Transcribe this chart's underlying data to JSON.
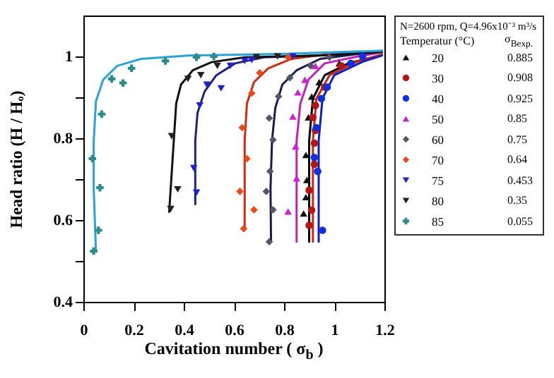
{
  "chart_data": {
    "type": "scatter",
    "xlabel": "Cavitation number ( σ$_{b}$ )",
    "ylabel": "Head ratio (H / Hₒ)",
    "legend_title": "N=2600 rpm, Q=4.96x10⁻³ m³/s",
    "legend": "right",
    "xlim": [
      0,
      1.2
    ],
    "ylim": [
      0.4,
      1.1
    ],
    "xticks": [
      0,
      0.2,
      0.4,
      0.6,
      0.8,
      1,
      1.2
    ],
    "yticks": [
      0.4,
      {
        "value": 0.5,
        "label": null
      },
      0.6,
      {
        "value": 0.7,
        "label": null
      },
      0.8,
      {
        "value": 0.9,
        "label": null
      },
      1
    ],
    "annotations": [
      "Temperatur (°C)",
      "σ$_{Bexp.}$",
      "0.885",
      "0.908",
      "0.925",
      "0.85",
      "0.75",
      "0.64",
      "0.453",
      "0.35",
      "0.055"
    ],
    "series": [
      {
        "name": "20",
        "type": "scatter",
        "marker": "triangle",
        "color": "#111111",
        "x": [
          0.878,
          0.887,
          0.891,
          0.887,
          0.897,
          0.91,
          0.94,
          1.02
        ],
        "values": [
          0.616,
          0.656,
          0.698,
          0.759,
          0.851,
          0.902,
          0.937,
          0.983
        ]
      },
      {
        "name": "30",
        "marker": "circle",
        "color": "#b01818",
        "x": [
          0.9,
          0.91,
          0.9,
          0.921,
          0.921,
          0.925,
          0.915,
          0.925,
          0.962,
          1.028
        ],
        "values": [
          0.587,
          0.624,
          0.673,
          0.736,
          0.788,
          0.819,
          0.851,
          0.88,
          0.925,
          0.977
        ]
      },
      {
        "name": "40",
        "marker": "circle",
        "color": "#1030e0",
        "x": [
          0.953,
          0.934,
          0.921,
          0.929,
          0.949,
          0.972,
          1.066,
          1.113
        ],
        "values": [
          0.575,
          0.719,
          0.753,
          0.826,
          0.897,
          0.925,
          0.983,
          1.0
        ]
      },
      {
        "name": "50",
        "marker": "triangle",
        "color": "#cc22cc",
        "x": [
          0.816,
          0.85,
          0.846,
          0.835,
          0.855,
          0.883,
          0.925
        ],
        "values": [
          0.621,
          0.702,
          0.78,
          0.853,
          0.912,
          0.943,
          0.977
        ]
      },
      {
        "name": "60",
        "marker": "diamond",
        "color": "#555566",
        "x": [
          0.741,
          0.756,
          0.729,
          0.744,
          0.756,
          0.741,
          0.778,
          0.823,
          0.906,
          0.981
        ],
        "values": [
          0.547,
          0.625,
          0.67,
          0.719,
          0.796,
          0.849,
          0.902,
          0.948,
          0.977,
          0.998
        ]
      },
      {
        "name": "70",
        "marker": "diamond",
        "color": "#e84a1a",
        "x": [
          0.639,
          0.68,
          0.624,
          0.652,
          0.633,
          0.671,
          0.703,
          0.816
        ],
        "values": [
          0.579,
          0.625,
          0.67,
          0.75,
          0.826,
          0.91,
          0.96,
          0.998
        ]
      },
      {
        "name": "75",
        "marker": "triangle-down",
        "color": "#2020d0",
        "x": [
          0.44,
          0.451,
          0.464,
          0.492,
          0.549,
          0.586,
          0.643,
          0.671,
          0.835
        ],
        "values": [
          0.727,
          0.667,
          0.88,
          0.931,
          0.922,
          0.977,
          0.989,
          0.991,
          1.0
        ]
      },
      {
        "name": "80",
        "marker": "triangle-down",
        "color": "#222222",
        "x": [
          0.352,
          0.376,
          0.348,
          0.417,
          0.468,
          0.534,
          0.69,
          0.774
        ],
        "values": [
          0.805,
          0.675,
          0.627,
          0.945,
          0.954,
          0.977,
          0.998,
          1.0
        ]
      },
      {
        "name": "85",
        "marker": "cross",
        "color": "#2e8b8b",
        "x": [
          0.041,
          0.06,
          0.066,
          0.036,
          0.073,
          0.113,
          0.158,
          0.192,
          0.327,
          0.451,
          0.52
        ],
        "values": [
          0.524,
          0.575,
          0.679,
          0.75,
          0.859,
          0.945,
          0.935,
          0.971,
          0.989,
          0.998,
          1.0
        ]
      },
      {
        "type": "line",
        "color": "#000000",
        "x": [
          0.9,
          0.9,
          0.915,
          0.962,
          1.056,
          1.19
        ],
        "values": [
          0.547,
          0.794,
          0.897,
          0.954,
          0.983,
          1.004
        ]
      },
      {
        "type": "line",
        "color": "#d02020",
        "x": [
          0.915,
          0.915,
          0.929,
          0.981,
          1.094,
          1.19
        ],
        "values": [
          0.547,
          0.794,
          0.897,
          0.954,
          0.988,
          1.004
        ]
      },
      {
        "type": "line",
        "color": "#1020c0",
        "x": [
          0.938,
          0.938,
          0.953,
          1.0,
          1.113,
          1.19
        ],
        "values": [
          0.547,
          0.794,
          0.897,
          0.954,
          0.987,
          1.002
        ]
      },
      {
        "type": "line",
        "color": "#c020c0",
        "x": [
          0.85,
          0.85,
          0.865,
          0.897,
          0.962,
          1.094,
          1.19
        ],
        "values": [
          0.547,
          0.794,
          0.885,
          0.943,
          0.983,
          1.0,
          1.01
        ]
      },
      {
        "type": "line",
        "color": "#1a1a50",
        "x": [
          0.748,
          0.746,
          0.752,
          0.765,
          0.793,
          0.85,
          0.944,
          1.094,
          1.19
        ],
        "values": [
          0.547,
          0.679,
          0.794,
          0.874,
          0.931,
          0.966,
          0.994,
          1.006,
          1.011
        ]
      },
      {
        "type": "line",
        "color": "#d02a10",
        "x": [
          0.643,
          0.643,
          0.652,
          0.68,
          0.737,
          0.83,
          0.98,
          1.19
        ],
        "values": [
          0.575,
          0.794,
          0.885,
          0.937,
          0.971,
          0.994,
          1.006,
          1.011
        ]
      },
      {
        "type": "line",
        "color": "#202080",
        "x": [
          0.446,
          0.446,
          0.455,
          0.483,
          0.53,
          0.605,
          0.718,
          0.98,
          1.19
        ],
        "values": [
          0.639,
          0.794,
          0.862,
          0.914,
          0.954,
          0.983,
          0.998,
          1.003,
          1.014
        ]
      },
      {
        "type": "line",
        "color": "#111111",
        "x": [
          0.342,
          0.36,
          0.37,
          0.389,
          0.436,
          0.511,
          0.643,
          0.98,
          1.19
        ],
        "values": [
          0.62,
          0.79,
          0.885,
          0.931,
          0.966,
          0.986,
          0.998,
          1.003,
          1.011
        ]
      },
      {
        "type": "line",
        "color": "#29a3d6",
        "x": [
          0.05,
          0.041,
          0.041,
          0.05,
          0.079,
          0.135,
          0.23,
          0.417,
          0.79,
          1.19
        ],
        "values": [
          0.524,
          0.68,
          0.79,
          0.89,
          0.943,
          0.977,
          0.994,
          1.002,
          1.006,
          1.014
        ]
      }
    ]
  }
}
